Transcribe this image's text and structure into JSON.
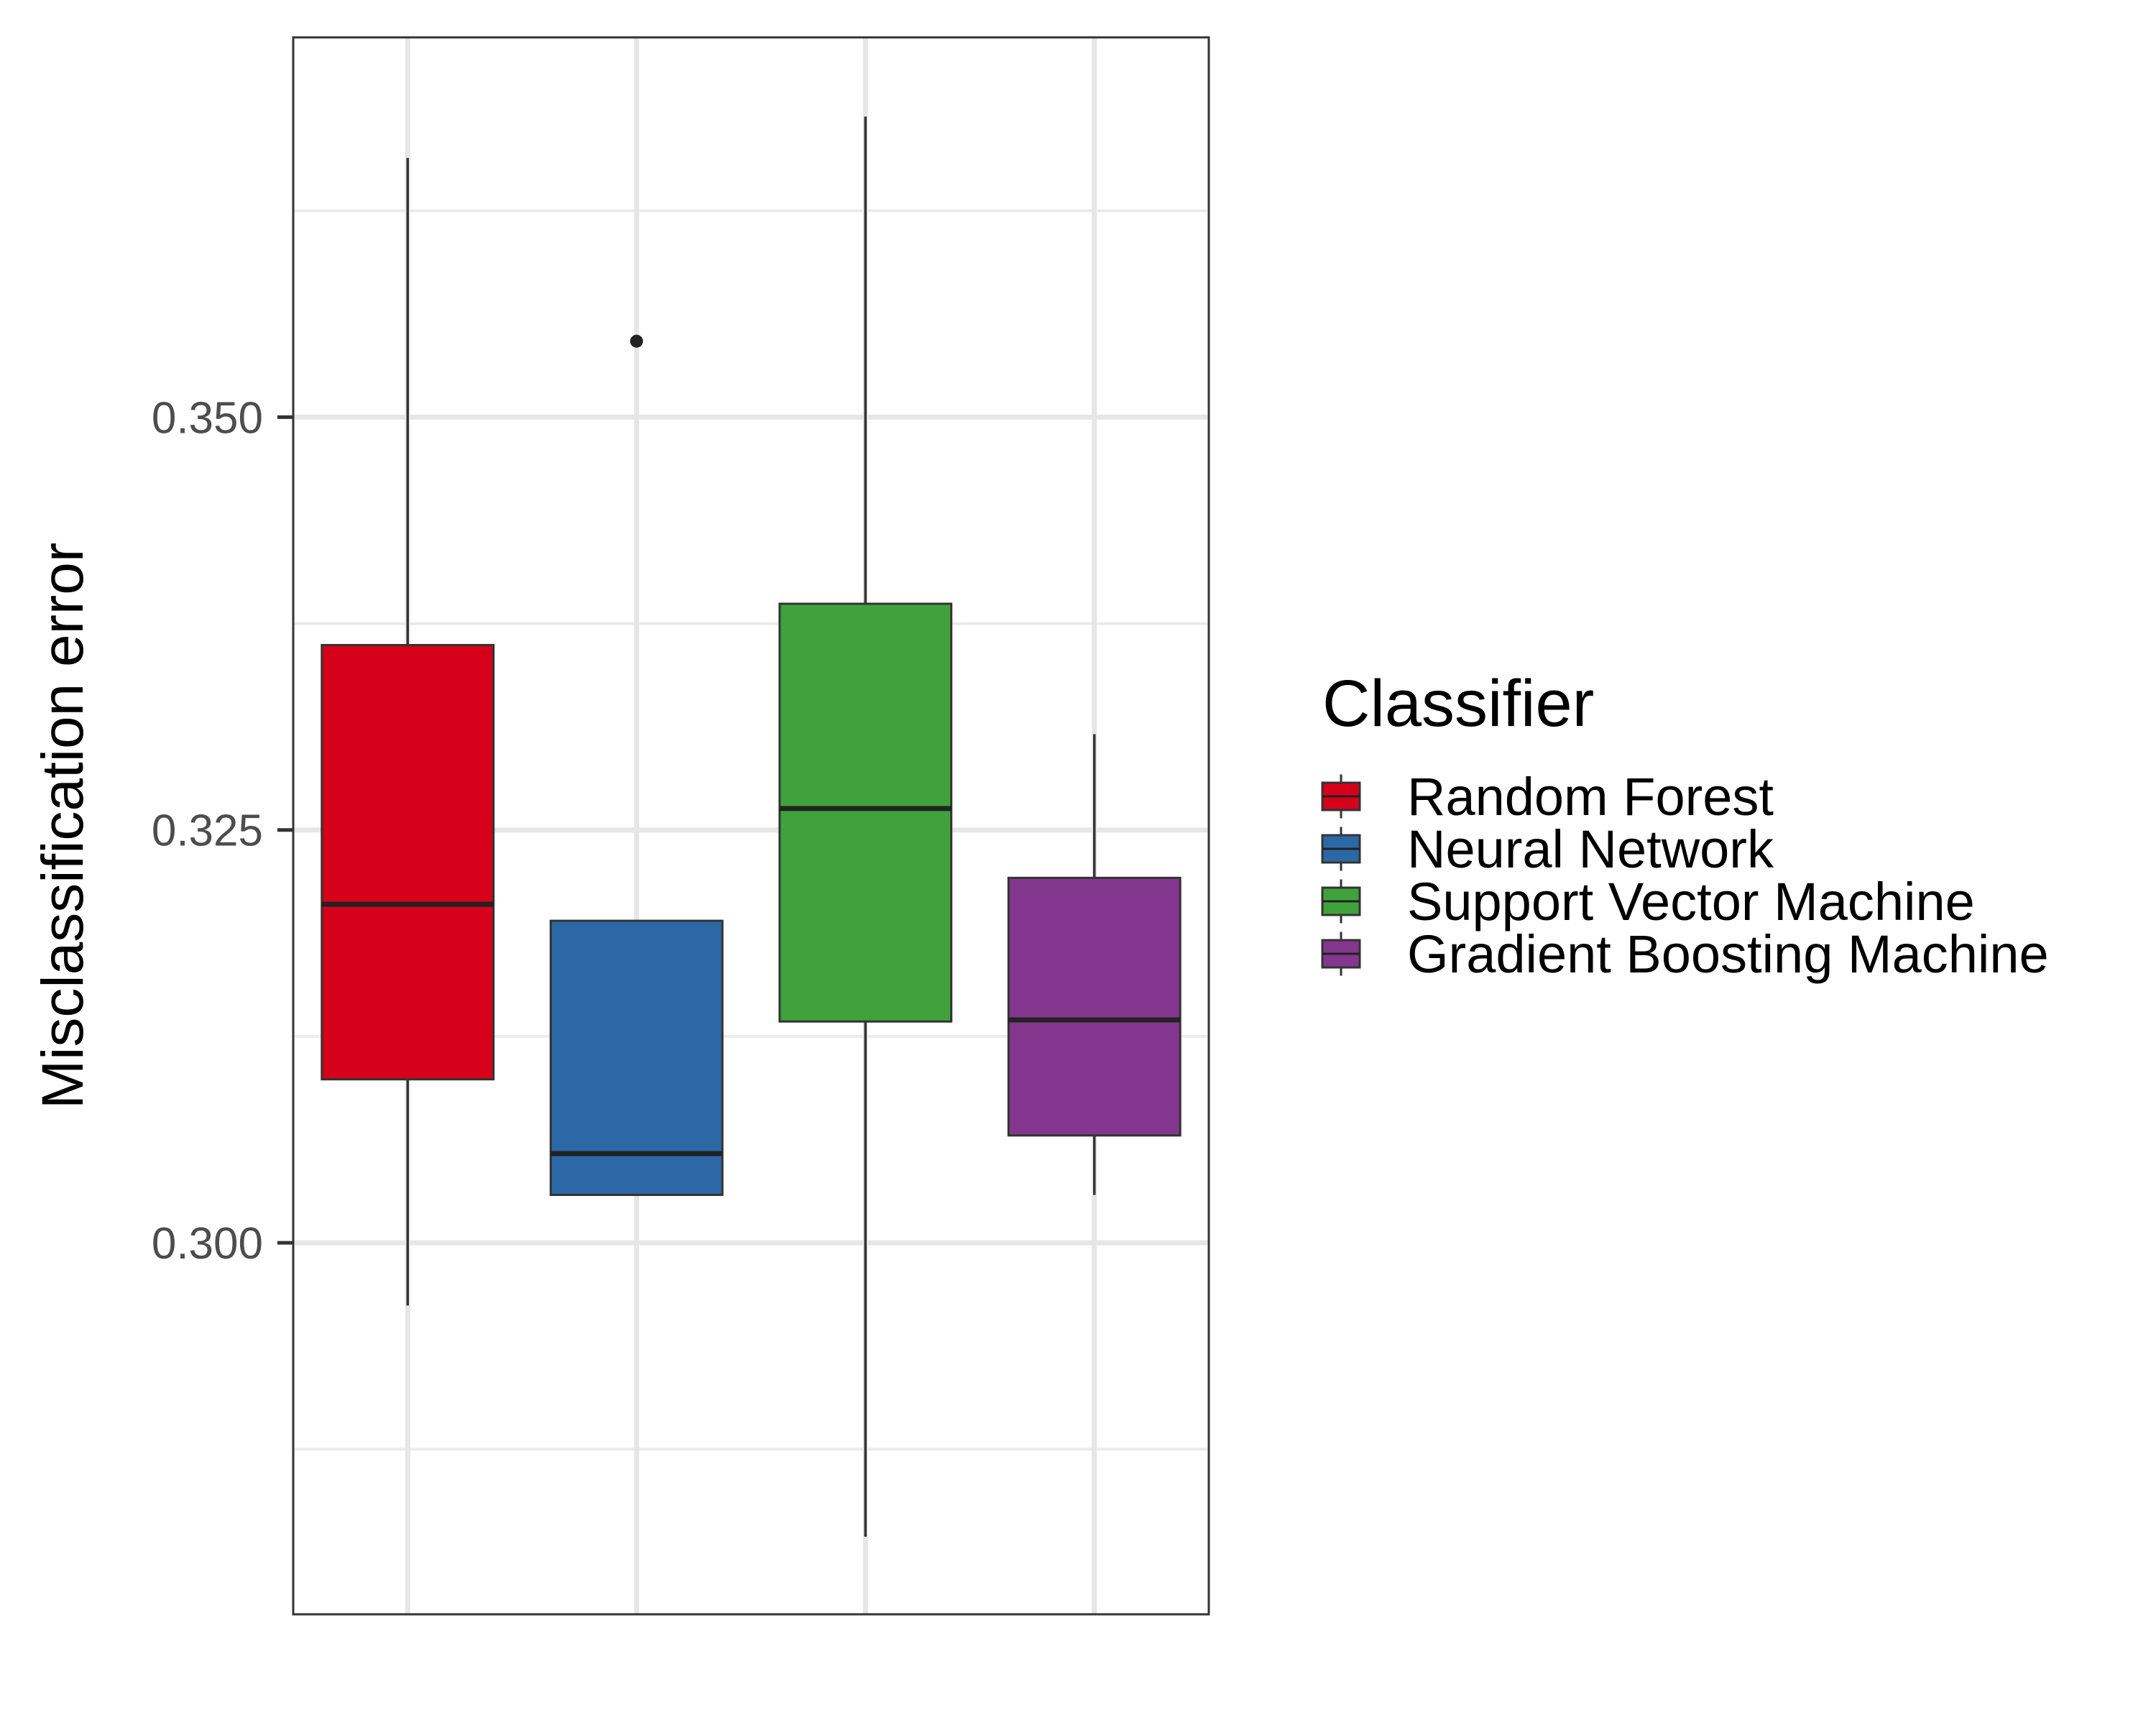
{
  "chart_data": {
    "type": "boxplot",
    "title": "",
    "xlabel": "",
    "ylabel": "Misclassification error",
    "ylim": [
      0.2775,
      0.373
    ],
    "yticks": [
      0.3,
      0.325,
      0.35
    ],
    "ytick_labels": [
      "0.300",
      "0.325",
      "0.350"
    ],
    "grid": true,
    "legend": {
      "title": "Classifier",
      "position": "right"
    },
    "series": [
      {
        "name": "Random Forest",
        "color": "#d7001a",
        "whisker_low": 0.2962,
        "q1": 0.3099,
        "median": 0.3205,
        "q3": 0.3362,
        "whisker_high": 0.3657,
        "outliers": []
      },
      {
        "name": "Neural Network",
        "color": "#2c68a6",
        "whisker_low": 0.3029,
        "q1": 0.3029,
        "median": 0.3054,
        "q3": 0.3195,
        "whisker_high": 0.3195,
        "outliers": [
          0.3546
        ]
      },
      {
        "name": "Support Vector Machine",
        "color": "#40a23b",
        "whisker_low": 0.2822,
        "q1": 0.3134,
        "median": 0.3263,
        "q3": 0.3387,
        "whisker_high": 0.3682,
        "outliers": []
      },
      {
        "name": "Gradient Boosting Machine",
        "color": "#84378e",
        "whisker_low": 0.3029,
        "q1": 0.3065,
        "median": 0.3135,
        "q3": 0.3221,
        "whisker_high": 0.3308,
        "outliers": []
      }
    ]
  }
}
